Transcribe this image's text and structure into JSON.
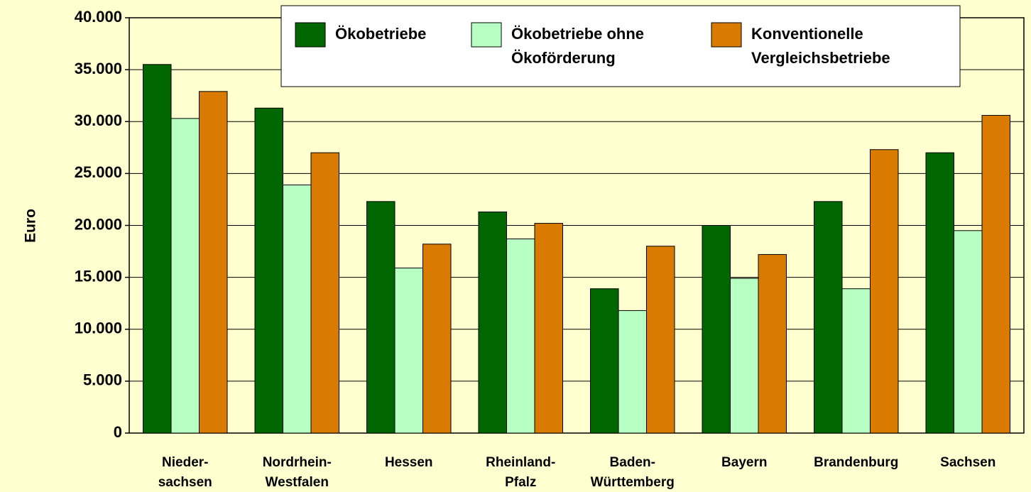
{
  "chart_data": {
    "type": "bar",
    "ylabel": "Euro",
    "categories": [
      "Nieder-\nsachsen",
      "Nordrhein-\nWestfalen",
      "Hessen",
      "Rheinland-\nPfalz",
      "Baden-\nWürttemberg",
      "Bayern",
      "Brandenburg",
      "Sachsen"
    ],
    "series": [
      {
        "name": "Ökobetriebe",
        "color": "#006600",
        "values": [
          35500,
          31300,
          22300,
          21300,
          13900,
          20000,
          22300,
          27000
        ]
      },
      {
        "name": "Ökobetriebe ohne\nÖkoförderung",
        "color": "#b8ffc4",
        "values": [
          30300,
          23900,
          15900,
          18700,
          11800,
          14900,
          13900,
          19500
        ]
      },
      {
        "name": "Konventionelle\nVergleichsbetriebe",
        "color": "#d97b00",
        "values": [
          32900,
          27000,
          18200,
          20200,
          18000,
          17200,
          27300,
          30600
        ]
      }
    ],
    "ylim": [
      0,
      40000
    ],
    "yticks": [
      0,
      {
        "value": 5000,
        "label": "5.000"
      },
      {
        "value": 10000,
        "label": "10.000"
      },
      {
        "value": 15000,
        "label": "15.000"
      },
      {
        "value": 20000,
        "label": "20.000"
      },
      {
        "value": 25000,
        "label": "25.000"
      },
      {
        "value": 30000,
        "label": "30.000"
      },
      {
        "value": 35000,
        "label": "35.000"
      },
      {
        "value": 40000,
        "label": "40.000"
      }
    ],
    "grid": true
  }
}
